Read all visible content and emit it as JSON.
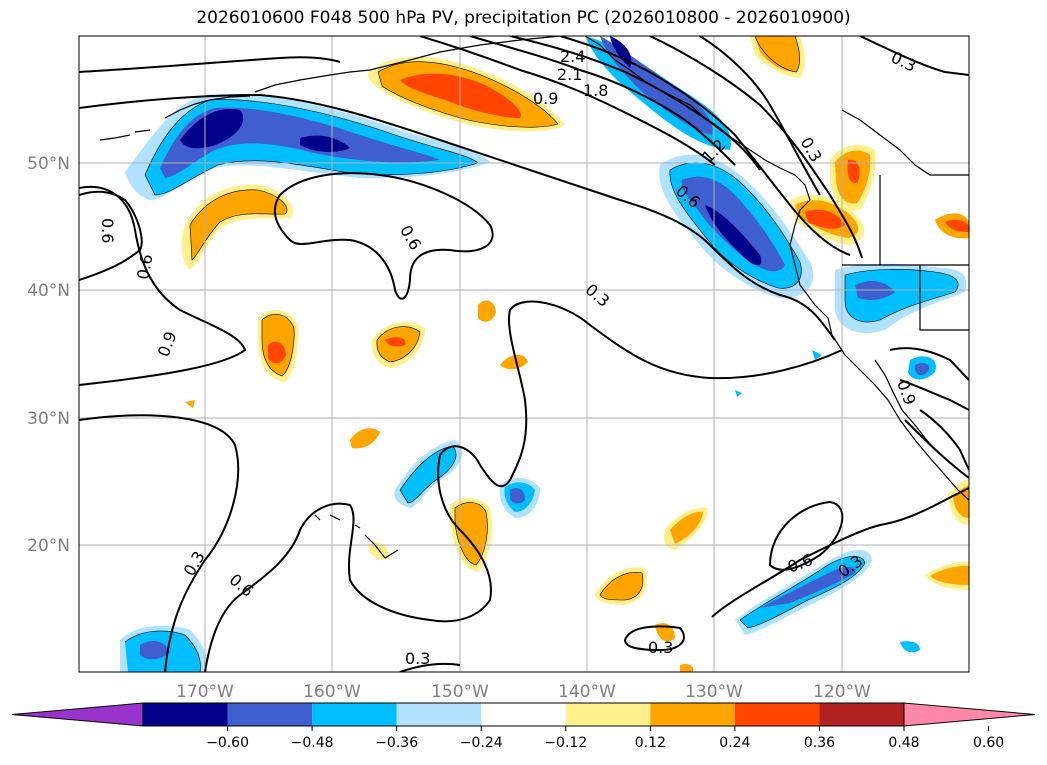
{
  "title": "2026010600 F048 500 hPa PV, precipitation PC (2026010800 - 2026010900)",
  "map": {
    "lat_labels": [
      "50°N",
      "40°N",
      "30°N",
      "20°N"
    ],
    "lon_labels": [
      "170°W",
      "160°W",
      "150°W",
      "140°W",
      "130°W",
      "120°W"
    ],
    "contour_labels": [
      "2.4",
      "2.1",
      "1.8",
      "0.9",
      "0.3",
      "0.6",
      "0.6",
      "0.6",
      "0.9",
      "0.3",
      "0.6",
      "0.3",
      "0.3",
      "0.6",
      "0.3",
      "0.3",
      "1.2",
      "0.6",
      "0.9"
    ]
  },
  "colorbar": {
    "ticks": [
      "−0.60",
      "−0.48",
      "−0.36",
      "−0.24",
      "−0.12",
      "0.12",
      "0.24",
      "0.36",
      "0.48",
      "0.60"
    ],
    "colors": [
      "#9933cc",
      "#00008b",
      "#3f5fd0",
      "#00bfff",
      "#b0e2ff",
      "#ffffff",
      "#fff08c",
      "#ffa500",
      "#ff4500",
      "#b22222",
      "#ff88aa"
    ]
  }
}
